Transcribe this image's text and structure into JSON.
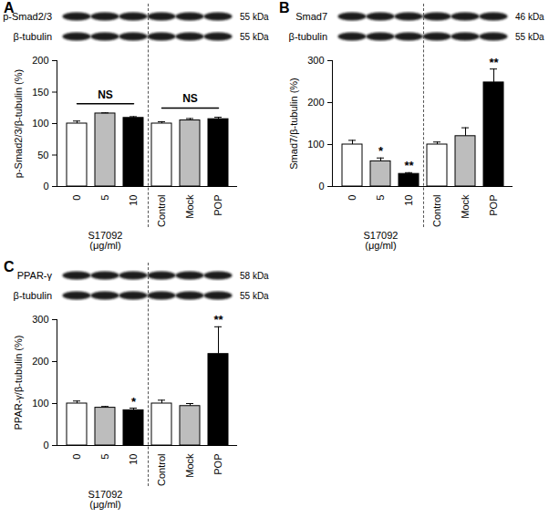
{
  "chart_data": [
    {
      "type": "bar",
      "panel": "A",
      "y_label": "p-Smad2/3/β-tubulin (%)",
      "categories": [
        "0",
        "5",
        "10",
        "Control",
        "Mock",
        "POP"
      ],
      "values": [
        100,
        116,
        109,
        100,
        105,
        107
      ],
      "errors": [
        4,
        1,
        2,
        3,
        3,
        3
      ],
      "colors": [
        "#ffffff",
        "#bdbdbd",
        "#000000",
        "#ffffff",
        "#bdbdbd",
        "#000000"
      ],
      "ylim": [
        0,
        200
      ],
      "yticks": [
        0,
        50,
        100,
        150,
        200
      ],
      "significance": [
        null,
        null,
        null,
        null,
        null,
        null
      ],
      "annotations": [
        {
          "text": "NS",
          "from": "0",
          "to": "10"
        },
        {
          "text": "NS",
          "from": "Control",
          "to": "POP"
        }
      ],
      "groups": [
        {
          "label": "S17092 (μg/ml)",
          "from": "0",
          "to": "10"
        }
      ],
      "blot": [
        {
          "protein": "p-Smad2/3",
          "kda": "55 kDa"
        },
        {
          "protein": "β-tubulin",
          "kda": "55 kDa"
        }
      ]
    },
    {
      "type": "bar",
      "panel": "B",
      "y_label": "Smad7/β-tubulin (%)",
      "categories": [
        "0",
        "5",
        "10",
        "Control",
        "Mock",
        "POP"
      ],
      "values": [
        100,
        60,
        30,
        100,
        120,
        248
      ],
      "errors": [
        10,
        8,
        3,
        6,
        20,
        32
      ],
      "colors": [
        "#ffffff",
        "#bdbdbd",
        "#000000",
        "#ffffff",
        "#bdbdbd",
        "#000000"
      ],
      "ylim": [
        0,
        300
      ],
      "yticks": [
        0,
        100,
        200,
        300
      ],
      "significance": [
        null,
        "*",
        "**",
        null,
        null,
        "**"
      ],
      "annotations": [],
      "groups": [
        {
          "label": "S17092 (μg/ml)",
          "from": "0",
          "to": "10"
        }
      ],
      "blot": [
        {
          "protein": "Smad7",
          "kda": "46 kDa"
        },
        {
          "protein": "β-tubulin",
          "kda": "55 kDa"
        }
      ]
    },
    {
      "type": "bar",
      "panel": "C",
      "y_label": "PPAR-γ/β-tubulin (%)",
      "categories": [
        "0",
        "5",
        "10",
        "Control",
        "Mock",
        "POP"
      ],
      "values": [
        100,
        90,
        84,
        100,
        94,
        218
      ],
      "errors": [
        6,
        3,
        5,
        8,
        6,
        65
      ],
      "colors": [
        "#ffffff",
        "#bdbdbd",
        "#000000",
        "#ffffff",
        "#bdbdbd",
        "#000000"
      ],
      "ylim": [
        0,
        300
      ],
      "yticks": [
        0,
        100,
        200,
        300
      ],
      "significance": [
        null,
        null,
        "*",
        null,
        null,
        "**"
      ],
      "annotations": [],
      "groups": [
        {
          "label": "S17092 (μg/ml)",
          "from": "0",
          "to": "10"
        }
      ],
      "blot": [
        {
          "protein": "PPAR-γ",
          "kda": "58 kDa"
        },
        {
          "protein": "β-tubulin",
          "kda": "55 kDa"
        }
      ]
    }
  ]
}
